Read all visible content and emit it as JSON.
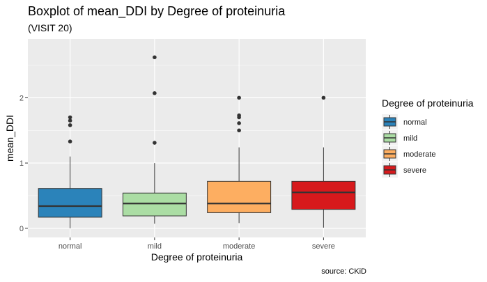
{
  "chart_data": {
    "type": "boxplot",
    "title": "Boxplot of mean_DDI by Degree of proteinuria",
    "subtitle": "(VISIT 20)",
    "xlabel": "Degree of proteinuria",
    "ylabel": "mean_DDI",
    "caption": "source: CKiD",
    "ylim": [
      -0.14,
      2.9
    ],
    "y_ticks": [
      0,
      1,
      2
    ],
    "y_minor_ticks": [
      0.5,
      1.5,
      2.5
    ],
    "grid": true,
    "legend": {
      "title": "Degree of proteinuria",
      "position": "right"
    },
    "categories": [
      "normal",
      "mild",
      "moderate",
      "severe"
    ],
    "boxes": [
      {
        "category": "normal",
        "color": "#2b83ba",
        "lower_whisker": 0.0,
        "q1": 0.17,
        "median": 0.34,
        "q3": 0.61,
        "upper_whisker": 1.1,
        "outliers": [
          1.33,
          1.58,
          1.65,
          1.7
        ]
      },
      {
        "category": "mild",
        "color": "#abdda4",
        "lower_whisker": 0.07,
        "q1": 0.19,
        "median": 0.38,
        "q3": 0.54,
        "upper_whisker": 1.0,
        "outliers": [
          1.31,
          2.07,
          2.62
        ]
      },
      {
        "category": "moderate",
        "color": "#fdae61",
        "lower_whisker": 0.08,
        "q1": 0.24,
        "median": 0.38,
        "q3": 0.72,
        "upper_whisker": 1.24,
        "outliers": [
          1.5,
          1.61,
          1.7,
          1.73,
          2.0
        ]
      },
      {
        "category": "severe",
        "color": "#d7191c",
        "lower_whisker": 0.01,
        "q1": 0.29,
        "median": 0.55,
        "q3": 0.72,
        "upper_whisker": 1.24,
        "outliers": [
          2.0
        ]
      }
    ]
  }
}
